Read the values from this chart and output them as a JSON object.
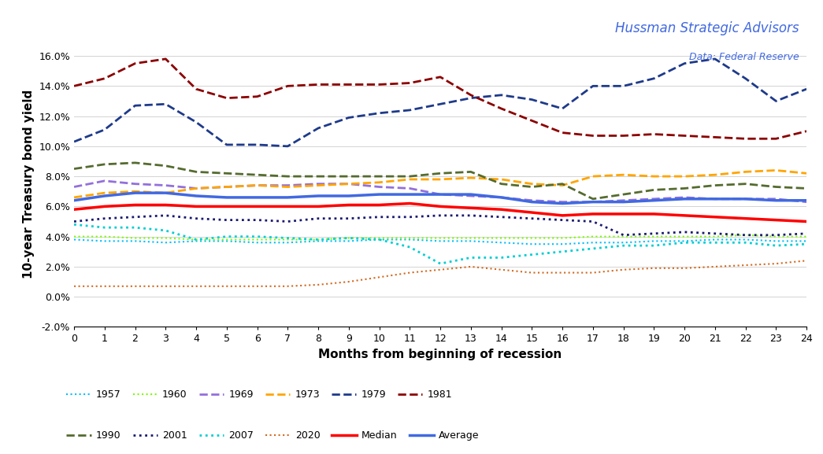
{
  "title": "Hussman Strategic Advisors",
  "subtitle": "Data: Federal Reserve",
  "xlabel": "Months from beginning of recession",
  "ylabel": "10-year Treasury bond yield",
  "xlim": [
    0,
    24
  ],
  "ylim": [
    -0.02,
    0.17
  ],
  "yticks": [
    -0.02,
    0.0,
    0.02,
    0.04,
    0.06,
    0.08,
    0.1,
    0.12,
    0.14,
    0.16
  ],
  "ytick_labels": [
    "-2.0%",
    "0.0%",
    "2.0%",
    "4.0%",
    "6.0%",
    "8.0%",
    "10.0%",
    "12.0%",
    "14.0%",
    "16.0%"
  ],
  "series": {
    "1957": [
      0.038,
      0.037,
      0.037,
      0.036,
      0.037,
      0.037,
      0.036,
      0.036,
      0.037,
      0.037,
      0.038,
      0.038,
      0.037,
      0.037,
      0.036,
      0.035,
      0.035,
      0.036,
      0.036,
      0.037,
      0.037,
      0.038,
      0.038,
      0.037,
      0.037
    ],
    "1960": [
      0.04,
      0.04,
      0.039,
      0.039,
      0.038,
      0.038,
      0.038,
      0.038,
      0.038,
      0.039,
      0.039,
      0.039,
      0.039,
      0.039,
      0.039,
      0.039,
      0.039,
      0.04,
      0.04,
      0.04,
      0.04,
      0.04,
      0.041,
      0.04,
      0.04
    ],
    "1969": [
      0.073,
      0.077,
      0.075,
      0.074,
      0.072,
      0.073,
      0.074,
      0.074,
      0.075,
      0.075,
      0.073,
      0.072,
      0.068,
      0.067,
      0.066,
      0.064,
      0.063,
      0.063,
      0.064,
      0.065,
      0.066,
      0.065,
      0.065,
      0.065,
      0.063
    ],
    "1973": [
      0.066,
      0.069,
      0.07,
      0.069,
      0.072,
      0.073,
      0.074,
      0.073,
      0.074,
      0.075,
      0.076,
      0.078,
      0.078,
      0.079,
      0.078,
      0.075,
      0.074,
      0.08,
      0.081,
      0.08,
      0.08,
      0.081,
      0.083,
      0.084,
      0.082
    ],
    "1979": [
      0.103,
      0.111,
      0.127,
      0.128,
      0.116,
      0.101,
      0.101,
      0.1,
      0.112,
      0.119,
      0.122,
      0.124,
      0.128,
      0.132,
      0.134,
      0.131,
      0.125,
      0.14,
      0.14,
      0.145,
      0.155,
      0.158,
      0.145,
      0.13,
      0.138
    ],
    "1981": [
      0.14,
      0.145,
      0.155,
      0.158,
      0.138,
      0.132,
      0.133,
      0.14,
      0.141,
      0.141,
      0.141,
      0.142,
      0.146,
      0.134,
      0.125,
      0.117,
      0.109,
      0.107,
      0.107,
      0.108,
      0.107,
      0.106,
      0.105,
      0.105,
      0.11
    ],
    "1990": [
      0.085,
      0.088,
      0.089,
      0.087,
      0.083,
      0.082,
      0.081,
      0.08,
      0.08,
      0.08,
      0.08,
      0.08,
      0.082,
      0.083,
      0.075,
      0.073,
      0.075,
      0.065,
      0.068,
      0.071,
      0.072,
      0.074,
      0.075,
      0.073,
      0.072
    ],
    "2001": [
      0.05,
      0.052,
      0.053,
      0.054,
      0.052,
      0.051,
      0.051,
      0.05,
      0.052,
      0.052,
      0.053,
      0.053,
      0.054,
      0.054,
      0.053,
      0.052,
      0.051,
      0.05,
      0.041,
      0.042,
      0.043,
      0.042,
      0.041,
      0.041,
      0.042
    ],
    "2007": [
      0.048,
      0.046,
      0.046,
      0.044,
      0.038,
      0.04,
      0.04,
      0.039,
      0.038,
      0.039,
      0.038,
      0.033,
      0.022,
      0.026,
      0.026,
      0.028,
      0.03,
      0.032,
      0.034,
      0.034,
      0.036,
      0.036,
      0.036,
      0.034,
      0.035
    ],
    "2020": [
      0.007,
      0.007,
      0.007,
      0.007,
      0.007,
      0.007,
      0.007,
      0.007,
      0.008,
      0.01,
      0.013,
      0.016,
      0.018,
      0.02,
      0.018,
      0.016,
      0.016,
      0.016,
      0.018,
      0.019,
      0.019,
      0.02,
      0.021,
      0.022,
      0.024
    ],
    "Median": [
      0.058,
      0.06,
      0.061,
      0.061,
      0.06,
      0.06,
      0.06,
      0.06,
      0.06,
      0.061,
      0.061,
      0.062,
      0.06,
      0.059,
      0.058,
      0.056,
      0.054,
      0.055,
      0.055,
      0.055,
      0.054,
      0.053,
      0.052,
      0.051,
      0.05
    ],
    "Average": [
      0.064,
      0.067,
      0.069,
      0.069,
      0.067,
      0.066,
      0.066,
      0.066,
      0.067,
      0.067,
      0.068,
      0.068,
      0.068,
      0.068,
      0.066,
      0.063,
      0.062,
      0.063,
      0.063,
      0.064,
      0.065,
      0.065,
      0.065,
      0.064,
      0.064
    ]
  },
  "styles": {
    "1957": {
      "color": "#00BFFF",
      "linestyle": "dotted",
      "linewidth": 1.5
    },
    "1960": {
      "color": "#7CFC00",
      "linestyle": "dotted",
      "linewidth": 1.5
    },
    "1969": {
      "color": "#9370DB",
      "linestyle": "dashed",
      "linewidth": 2.0
    },
    "1973": {
      "color": "#FFA500",
      "linestyle": "dashed",
      "linewidth": 2.0
    },
    "1979": {
      "color": "#1E3A8A",
      "linestyle": "dashed",
      "linewidth": 2.0
    },
    "1981": {
      "color": "#8B0000",
      "linestyle": "dashed",
      "linewidth": 2.0
    },
    "1990": {
      "color": "#556B2F",
      "linestyle": "dashed",
      "linewidth": 2.0
    },
    "2001": {
      "color": "#191970",
      "linestyle": "dotted",
      "linewidth": 2.0
    },
    "2007": {
      "color": "#00CED1",
      "linestyle": "dotted",
      "linewidth": 2.0
    },
    "2020": {
      "color": "#D2691E",
      "linestyle": "dotted",
      "linewidth": 1.5
    },
    "Median": {
      "color": "#FF0000",
      "linestyle": "solid",
      "linewidth": 2.5
    },
    "Average": {
      "color": "#4169E1",
      "linestyle": "solid",
      "linewidth": 2.5
    }
  },
  "legend_row1": [
    "1957",
    "1960",
    "1969",
    "1973",
    "1979",
    "1981"
  ],
  "legend_row2": [
    "1990",
    "2001",
    "2007",
    "2020",
    "Median",
    "Average"
  ]
}
